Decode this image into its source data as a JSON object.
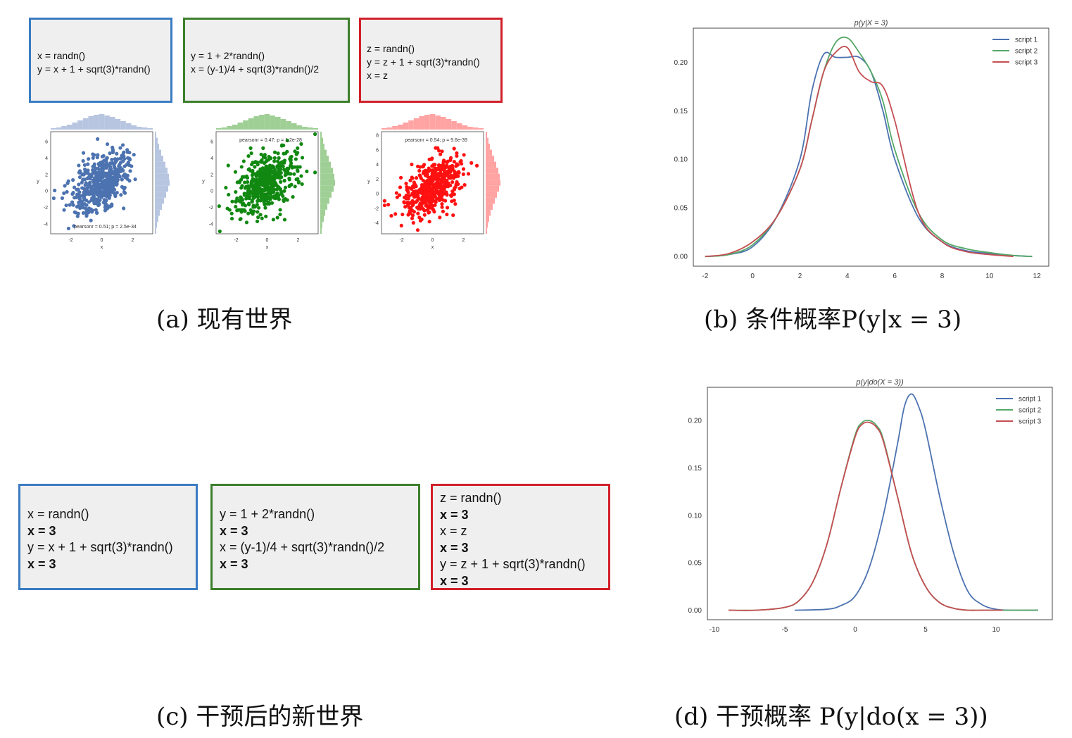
{
  "panel_a": {
    "caption": "(a) 现有世界",
    "scripts": [
      {
        "color": "#3a7cc3",
        "lines": [
          {
            "text": "x = randn()",
            "bold": false
          },
          {
            "text": "y = x + 1 + sqrt(3)*randn()",
            "bold": false
          }
        ]
      },
      {
        "color": "#3c7f2a",
        "lines": [
          {
            "text": "y = 1 + 2*randn()",
            "bold": false
          },
          {
            "text": "x = (y-1)/4 + sqrt(3)*randn()/2",
            "bold": false
          }
        ]
      },
      {
        "color": "#d2202a",
        "lines": [
          {
            "text": "z = randn()",
            "bold": false
          },
          {
            "text": "y = z + 1 + sqrt(3)*randn()",
            "bold": false
          },
          {
            "text": "x = z",
            "bold": false
          }
        ]
      }
    ],
    "scatters": [
      {
        "color": "#4c72b0",
        "hist_color": "#b7c5e0",
        "stat": "pearsonr = 0.51; p = 2.5e-34",
        "xlabel": "x",
        "ylabel": "y",
        "xticks": [
          "-2",
          "0",
          "2"
        ],
        "yticks": [
          "-4",
          "-2",
          "0",
          "2",
          "4",
          "6"
        ]
      },
      {
        "color": "#118811",
        "hist_color": "#9fcf95",
        "stat": "pearsonr = 0.47; p = 1.2e-28",
        "xlabel": "x",
        "ylabel": "y",
        "xticks": [
          "-2",
          "0",
          "2"
        ],
        "yticks": [
          "-4",
          "-2",
          "0",
          "2",
          "4",
          "6"
        ]
      },
      {
        "color": "#ff1111",
        "hist_color": "#ffa3a3",
        "stat": "pearsonr = 0.54; p = 9.6e-39",
        "xlabel": "x",
        "ylabel": "y",
        "xticks": [
          "-2",
          "0",
          "2"
        ],
        "yticks": [
          "-4",
          "-2",
          "0",
          "2",
          "4",
          "6",
          "8"
        ]
      }
    ]
  },
  "panel_b": {
    "caption": "(b) 条件概率P(y|x = 3)",
    "chart_data": {
      "type": "line",
      "title": "p(y|X = 3)",
      "xlim": [
        -2.5,
        12.5
      ],
      "ylim": [
        -0.01,
        0.235
      ],
      "xticks": [
        -2,
        0,
        2,
        4,
        6,
        8,
        10,
        12
      ],
      "yticks": [
        0.0,
        0.05,
        0.1,
        0.15,
        0.2
      ],
      "ytick_labels": [
        "0.00",
        "0.05",
        "0.10",
        "0.15",
        "0.20"
      ],
      "legend": "top-right",
      "series": [
        {
          "name": "script 1",
          "color": "#4c72b0",
          "x": [
            -2,
            -1,
            0,
            1,
            2,
            2.5,
            3,
            3.5,
            4,
            4.5,
            5,
            5.5,
            6,
            7,
            8,
            9,
            10,
            11,
            11.8
          ],
          "y": [
            0.0,
            0.002,
            0.01,
            0.04,
            0.1,
            0.17,
            0.208,
            0.205,
            0.205,
            0.205,
            0.19,
            0.15,
            0.1,
            0.04,
            0.015,
            0.006,
            0.003,
            0.001,
            0.0
          ]
        },
        {
          "name": "script 2",
          "color": "#55a868",
          "x": [
            -2,
            -1,
            0,
            1,
            2,
            2.5,
            3,
            3.5,
            4,
            4.5,
            5,
            5.5,
            6,
            7,
            8,
            9,
            10,
            11,
            11.8
          ],
          "y": [
            0.0,
            0.002,
            0.012,
            0.04,
            0.09,
            0.14,
            0.19,
            0.22,
            0.225,
            0.21,
            0.19,
            0.16,
            0.11,
            0.045,
            0.017,
            0.008,
            0.004,
            0.001,
            0.0
          ]
        },
        {
          "name": "script 3",
          "color": "#c44e52",
          "x": [
            -2,
            -1,
            0,
            1,
            2,
            2.5,
            3,
            3.5,
            4,
            4.5,
            5,
            5.5,
            6,
            7,
            8,
            9,
            10,
            11
          ],
          "y": [
            0.0,
            0.003,
            0.015,
            0.04,
            0.09,
            0.14,
            0.19,
            0.21,
            0.215,
            0.19,
            0.18,
            0.175,
            0.14,
            0.045,
            0.015,
            0.005,
            0.002,
            0.0
          ]
        }
      ]
    }
  },
  "panel_c": {
    "caption": "(c) 干预后的新世界",
    "scripts": [
      {
        "color": "#3a7cc3",
        "lines": [
          {
            "text": "x = randn()",
            "bold": false
          },
          {
            "text": "x = 3",
            "bold": true
          },
          {
            "text": "y = x + 1 + sqrt(3)*randn()",
            "bold": false
          },
          {
            "text": "x = 3",
            "bold": true
          }
        ]
      },
      {
        "color": "#3c7f2a",
        "lines": [
          {
            "text": "y = 1 + 2*randn()",
            "bold": false
          },
          {
            "text": "x = 3",
            "bold": true
          },
          {
            "text": "x = (y-1)/4 + sqrt(3)*randn()/2",
            "bold": false
          },
          {
            "text": "x = 3",
            "bold": true
          }
        ]
      },
      {
        "color": "#d2202a",
        "lines": [
          {
            "text": "z = randn()",
            "bold": false
          },
          {
            "text": "x = 3",
            "bold": true
          },
          {
            "text": "x = z",
            "bold": false
          },
          {
            "text": "x = 3",
            "bold": true
          },
          {
            "text": "y = z + 1 + sqrt(3)*randn()",
            "bold": false
          },
          {
            "text": "x = 3",
            "bold": true
          }
        ]
      }
    ]
  },
  "panel_d": {
    "caption": "(d) 干预概率 P(y|do(x = 3))",
    "chart_data": {
      "type": "line",
      "title": "p(y|do(X = 3))",
      "xlim": [
        -10.5,
        14
      ],
      "ylim": [
        -0.01,
        0.235
      ],
      "xticks": [
        -10,
        -5,
        0,
        5,
        10
      ],
      "yticks": [
        0.0,
        0.05,
        0.1,
        0.15,
        0.2
      ],
      "ytick_labels": [
        "0.00",
        "0.05",
        "0.10",
        "0.15",
        "0.20"
      ],
      "legend": "top-right",
      "series": [
        {
          "name": "script 1",
          "color": "#4c72b0",
          "x": [
            -4.3,
            -2,
            -1,
            0,
            1,
            2,
            3,
            3.5,
            4,
            4.5,
            5,
            6,
            7,
            8,
            9,
            10,
            11,
            13
          ],
          "y": [
            0.0,
            0.001,
            0.005,
            0.015,
            0.045,
            0.1,
            0.175,
            0.215,
            0.228,
            0.215,
            0.19,
            0.12,
            0.06,
            0.02,
            0.006,
            0.001,
            0.0,
            0.0
          ]
        },
        {
          "name": "script 2",
          "color": "#55a868",
          "x": [
            -9,
            -7,
            -5,
            -4,
            -3,
            -2,
            -1,
            0,
            0.5,
            1,
            1.5,
            2,
            3,
            4,
            5,
            6,
            7,
            8,
            9,
            10.5,
            13
          ],
          "y": [
            0.0,
            0.0,
            0.003,
            0.01,
            0.03,
            0.07,
            0.13,
            0.185,
            0.198,
            0.2,
            0.195,
            0.18,
            0.12,
            0.06,
            0.025,
            0.008,
            0.002,
            0.0,
            0.0,
            0.0,
            0.0
          ]
        },
        {
          "name": "script 3",
          "color": "#c44e52",
          "x": [
            -9,
            -7,
            -5,
            -4,
            -3,
            -2,
            -1,
            0,
            0.5,
            1,
            1.5,
            2,
            3,
            4,
            5,
            6,
            7,
            8,
            9,
            10.5
          ],
          "y": [
            0.0,
            0.0,
            0.003,
            0.01,
            0.03,
            0.07,
            0.13,
            0.183,
            0.196,
            0.198,
            0.193,
            0.178,
            0.12,
            0.06,
            0.025,
            0.008,
            0.002,
            0.0,
            0.0,
            0.0
          ]
        }
      ]
    }
  }
}
